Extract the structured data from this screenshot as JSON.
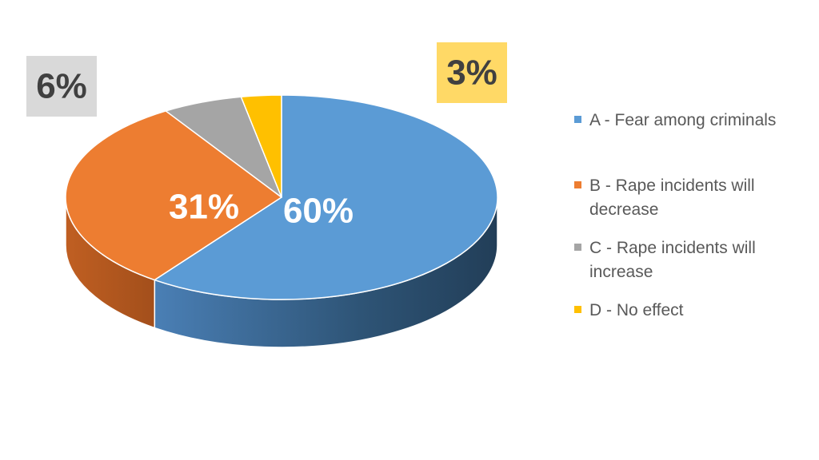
{
  "chart_data": {
    "type": "pie",
    "style": "3d",
    "legend_position": "right",
    "slices": [
      {
        "key": "A",
        "label": "A - Fear among criminals",
        "value": 60,
        "value_label": "60%",
        "color": "#5B9BD5"
      },
      {
        "key": "B",
        "label": "B - Rape incidents will decrease",
        "value": 31,
        "value_label": "31%",
        "color": "#ED7D31"
      },
      {
        "key": "C",
        "label": "C - Rape incidents will increase",
        "value": 6,
        "value_label": "6%",
        "color": "#A5A5A5"
      },
      {
        "key": "D",
        "label": "D - No effect",
        "value": 3,
        "value_label": "3%",
        "color": "#FFC000"
      }
    ]
  }
}
